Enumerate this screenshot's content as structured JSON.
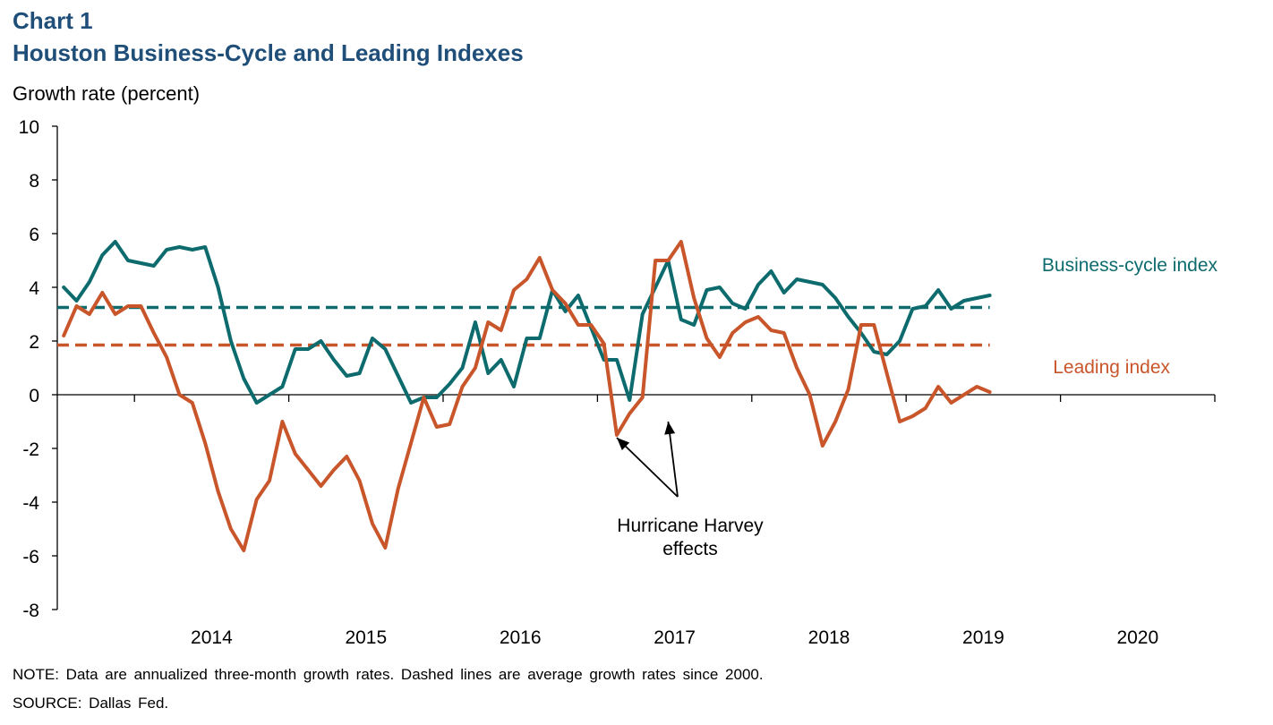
{
  "header": {
    "chart_label": "Chart 1",
    "title": "Houston Business-Cycle and Leading Indexes"
  },
  "footer": {
    "note": "NOTE: Data are annualized three-month growth rates. Dashed lines are average growth rates since 2000.",
    "source": "SOURCE: Dallas Fed."
  },
  "chart_data": {
    "type": "line",
    "title": "Houston Business-Cycle and Leading Indexes",
    "ylabel": "Growth rate (percent)",
    "xlabel": "",
    "ylim": [
      -8,
      10
    ],
    "yticks": [
      -8,
      -6,
      -4,
      -2,
      0,
      2,
      4,
      6,
      8,
      10
    ],
    "xlim": [
      "2013-07",
      "2020-12"
    ],
    "xtick_labels": [
      "2014",
      "2015",
      "2016",
      "2017",
      "2018",
      "2019",
      "2020"
    ],
    "grid": false,
    "x": [
      "2013-07",
      "2013-08",
      "2013-09",
      "2013-10",
      "2013-11",
      "2013-12",
      "2014-01",
      "2014-02",
      "2014-03",
      "2014-04",
      "2014-05",
      "2014-06",
      "2014-07",
      "2014-08",
      "2014-09",
      "2014-10",
      "2014-11",
      "2014-12",
      "2015-01",
      "2015-02",
      "2015-03",
      "2015-04",
      "2015-05",
      "2015-06",
      "2015-07",
      "2015-08",
      "2015-09",
      "2015-10",
      "2015-11",
      "2015-12",
      "2016-01",
      "2016-02",
      "2016-03",
      "2016-04",
      "2016-05",
      "2016-06",
      "2016-07",
      "2016-08",
      "2016-09",
      "2016-10",
      "2016-11",
      "2016-12",
      "2017-01",
      "2017-02",
      "2017-03",
      "2017-04",
      "2017-05",
      "2017-06",
      "2017-07",
      "2017-08",
      "2017-09",
      "2017-10",
      "2017-11",
      "2017-12",
      "2018-01",
      "2018-02",
      "2018-03",
      "2018-04",
      "2018-05",
      "2018-06",
      "2018-07",
      "2018-08",
      "2018-09",
      "2018-10",
      "2018-11",
      "2018-12",
      "2019-01",
      "2019-02",
      "2019-03",
      "2019-04",
      "2019-05",
      "2019-06",
      "2019-07"
    ],
    "series": [
      {
        "name": "Business-cycle index",
        "color": "#0d6b6e",
        "values": [
          4.0,
          3.5,
          4.2,
          5.2,
          5.7,
          5.0,
          4.9,
          4.8,
          5.4,
          5.5,
          5.4,
          5.5,
          4.0,
          2.0,
          0.6,
          -0.3,
          0.0,
          0.3,
          1.7,
          1.7,
          2.0,
          1.3,
          0.7,
          0.8,
          2.1,
          1.7,
          0.7,
          -0.3,
          -0.1,
          -0.1,
          0.4,
          1.0,
          2.7,
          0.8,
          1.3,
          0.3,
          2.1,
          2.1,
          3.9,
          3.1,
          3.7,
          2.5,
          1.3,
          1.3,
          -0.2,
          3.0,
          4.0,
          5.0,
          2.8,
          2.6,
          3.9,
          4.0,
          3.4,
          3.2,
          4.1,
          4.6,
          3.8,
          4.3,
          4.2,
          4.1,
          3.6,
          2.9,
          2.3,
          1.6,
          1.5,
          2.0,
          3.2,
          3.3,
          3.9,
          3.2,
          3.5,
          3.6,
          3.7
        ]
      },
      {
        "name": "Leading index",
        "color": "#c8562a",
        "values": [
          2.2,
          3.3,
          3.0,
          3.8,
          3.0,
          3.3,
          3.3,
          2.3,
          1.4,
          0.0,
          -0.3,
          -1.8,
          -3.6,
          -5.0,
          -5.8,
          -3.9,
          -3.2,
          -1.0,
          -2.2,
          -2.8,
          -3.4,
          -2.8,
          -2.3,
          -3.2,
          -4.8,
          -5.7,
          -3.5,
          -1.8,
          -0.1,
          -1.2,
          -1.1,
          0.3,
          1.0,
          2.7,
          2.4,
          3.9,
          4.3,
          5.1,
          3.9,
          3.4,
          2.6,
          2.6,
          1.9,
          -1.5,
          -0.7,
          -0.1,
          5.0,
          5.0,
          5.7,
          3.6,
          2.1,
          1.4,
          2.3,
          2.7,
          2.9,
          2.4,
          2.3,
          1.0,
          0.0,
          -1.9,
          -1.0,
          0.2,
          2.6,
          2.6,
          0.8,
          -1.0,
          -0.8,
          -0.5,
          0.3,
          -0.3,
          0.0,
          0.3,
          0.1
        ]
      }
    ],
    "reference_lines": [
      {
        "name": "Business-cycle average since 2000",
        "value": 3.25,
        "color": "#0d6b6e",
        "style": "dashed"
      },
      {
        "name": "Leading average since 2000",
        "value": 1.85,
        "color": "#c8562a",
        "style": "dashed"
      }
    ],
    "labels": {
      "business_cycle": "Business-cycle index",
      "leading": "Leading index"
    },
    "annotation": {
      "line1": "Hurricane Harvey",
      "line2": "effects",
      "arrow_targets": [
        "2017-02",
        "2017-06"
      ],
      "arrow_target_values": [
        -1.6,
        -1.0
      ]
    }
  }
}
